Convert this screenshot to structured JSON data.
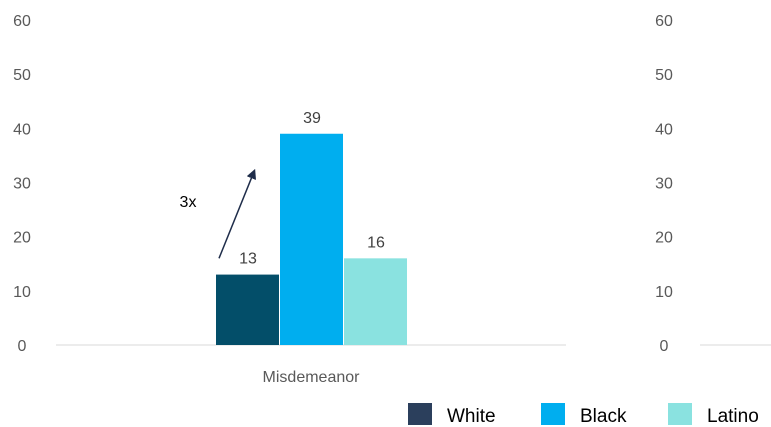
{
  "chart_data": [
    {
      "type": "bar",
      "categories": [
        "Misdemeanor"
      ],
      "series": [
        {
          "name": "White",
          "values": [
            13
          ],
          "color": "#034e69"
        },
        {
          "name": "Black",
          "values": [
            39
          ],
          "color": "#00aeef"
        },
        {
          "name": "Latino",
          "values": [
            16
          ],
          "color": "#8ae2e0"
        }
      ],
      "ylim": [
        0,
        60
      ],
      "yticks": [
        "0",
        "10",
        "20",
        "30",
        "40",
        "50",
        "60"
      ],
      "grid": false,
      "annotation": {
        "text": "3x",
        "from_series": "White",
        "to_series": "Black"
      }
    },
    {
      "type": "bar",
      "categories": [],
      "series": [],
      "ylim": [
        0,
        60
      ],
      "yticks": [
        "0",
        "10",
        "20",
        "30",
        "40",
        "50",
        "60"
      ],
      "grid": false
    }
  ],
  "legend": {
    "placement": "bottom-right",
    "items": [
      {
        "label": "White",
        "color": "#2b3f5c"
      },
      {
        "label": "Black",
        "color": "#00aeef"
      },
      {
        "label": "Latino",
        "color": "#8ae2e0"
      }
    ]
  }
}
